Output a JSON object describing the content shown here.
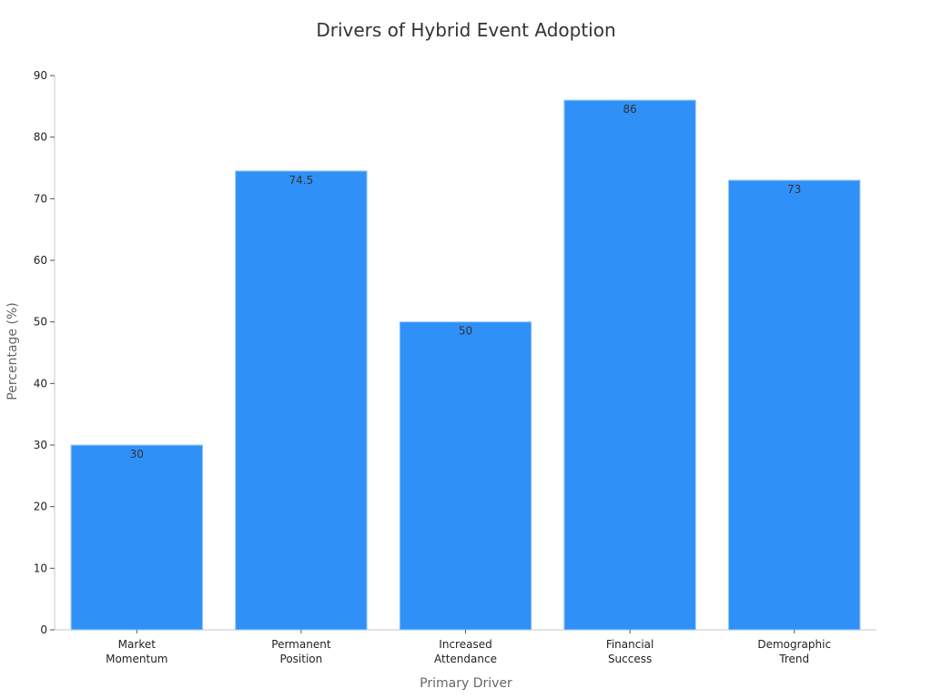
{
  "chart_data": {
    "type": "bar",
    "title": "Drivers of Hybrid Event Adoption",
    "xlabel": "Primary Driver",
    "ylabel": "Percentage (%)",
    "categories": [
      [
        "Market",
        "Momentum"
      ],
      [
        "Permanent",
        "Position"
      ],
      [
        "Increased",
        "Attendance"
      ],
      [
        "Financial",
        "Success"
      ],
      [
        "Demographic",
        "Trend"
      ]
    ],
    "values": [
      30,
      74.5,
      50,
      86,
      73
    ],
    "value_labels": [
      "30",
      "74.5",
      "50",
      "86",
      "73"
    ],
    "ylim": [
      0,
      90
    ],
    "yticks": [
      0,
      10,
      20,
      30,
      40,
      50,
      60,
      70,
      80,
      90
    ],
    "grid": false,
    "bar_color": "#2f91f7",
    "axis_color": "#c8c8c8"
  }
}
